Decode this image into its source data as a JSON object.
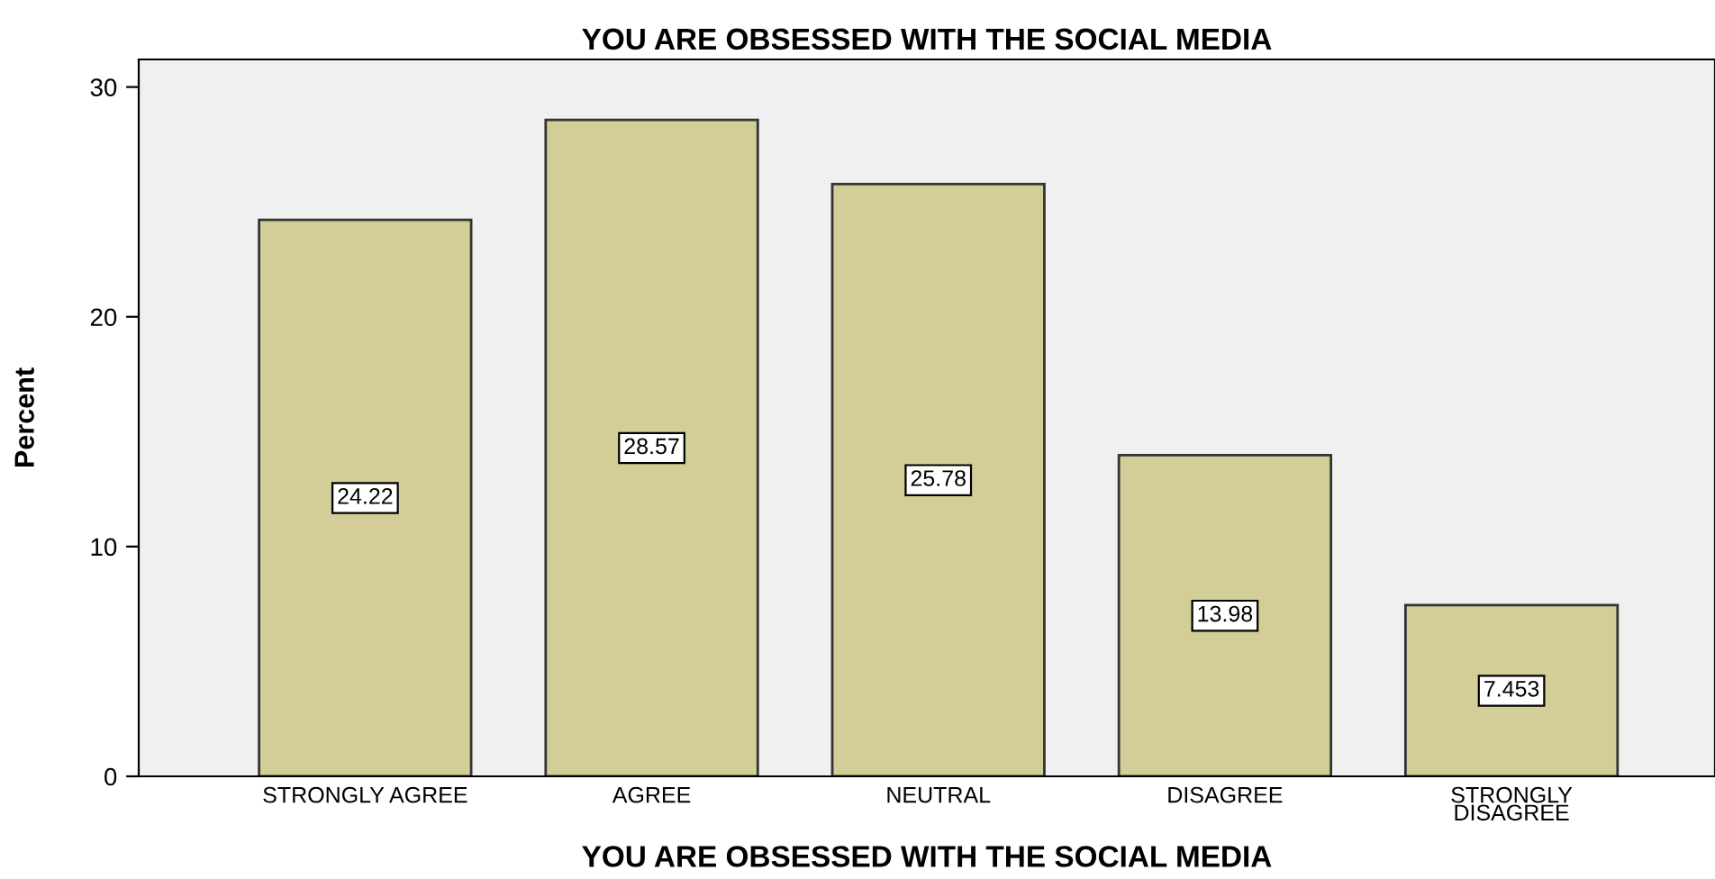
{
  "chart_data": {
    "type": "bar",
    "title": "YOU ARE OBSESSED WITH THE SOCIAL MEDIA",
    "xlabel": "YOU ARE OBSESSED WITH THE SOCIAL MEDIA",
    "ylabel": "Percent",
    "categories": [
      "STRONGLY AGREE",
      "AGREE",
      "NEUTRAL",
      "DISAGREE",
      "STRONGLY\nDISAGREE"
    ],
    "values": [
      24.22,
      28.57,
      25.78,
      13.98,
      7.453
    ],
    "color": "#d3ce97",
    "ylim": [
      0,
      31.2
    ],
    "yticks": [
      0,
      10,
      20,
      30
    ],
    "data_labels": true,
    "grid": false
  }
}
